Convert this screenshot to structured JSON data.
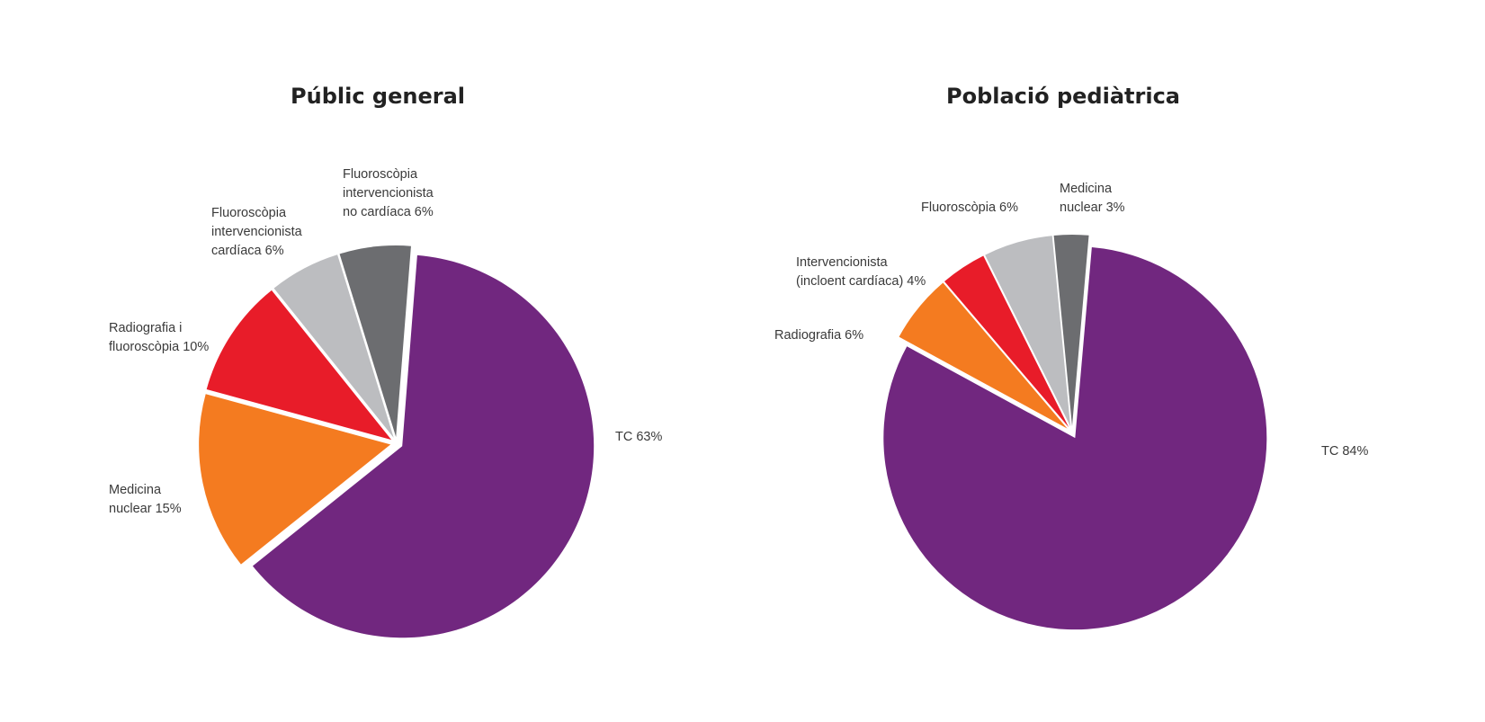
{
  "chart_data": [
    {
      "type": "pie",
      "title": "Públic general",
      "slices": [
        {
          "label": "TC 63%",
          "value": 63,
          "color": "#71277f"
        },
        {
          "label": "Medicina nuclear 15%",
          "value": 15,
          "color": "#f47b20"
        },
        {
          "label": "Radiografia i fluoroscòpia 10%",
          "value": 10,
          "color": "#e81c29"
        },
        {
          "label": "Fluoroscòpia intervencionista cardíaca 6%",
          "value": 6,
          "color": "#bcbdc0"
        },
        {
          "label": "Fluoroscòpia intervencionista no cardíaca 6%",
          "value": 6,
          "color": "#6c6d70"
        }
      ]
    },
    {
      "type": "pie",
      "title": "Població pediàtrica",
      "slices": [
        {
          "label": "TC 84%",
          "value": 84,
          "color": "#71277f"
        },
        {
          "label": "Radiografia 6%",
          "value": 6,
          "color": "#f47b20"
        },
        {
          "label": "Intervencionista (incloent cardíaca) 4%",
          "value": 4,
          "color": "#e81c29"
        },
        {
          "label": "Fluoroscòpia 6%",
          "value": 6,
          "color": "#bcbdc0"
        },
        {
          "label": "Medicina nuclear 3%",
          "value": 3,
          "color": "#6c6d70"
        }
      ]
    }
  ]
}
